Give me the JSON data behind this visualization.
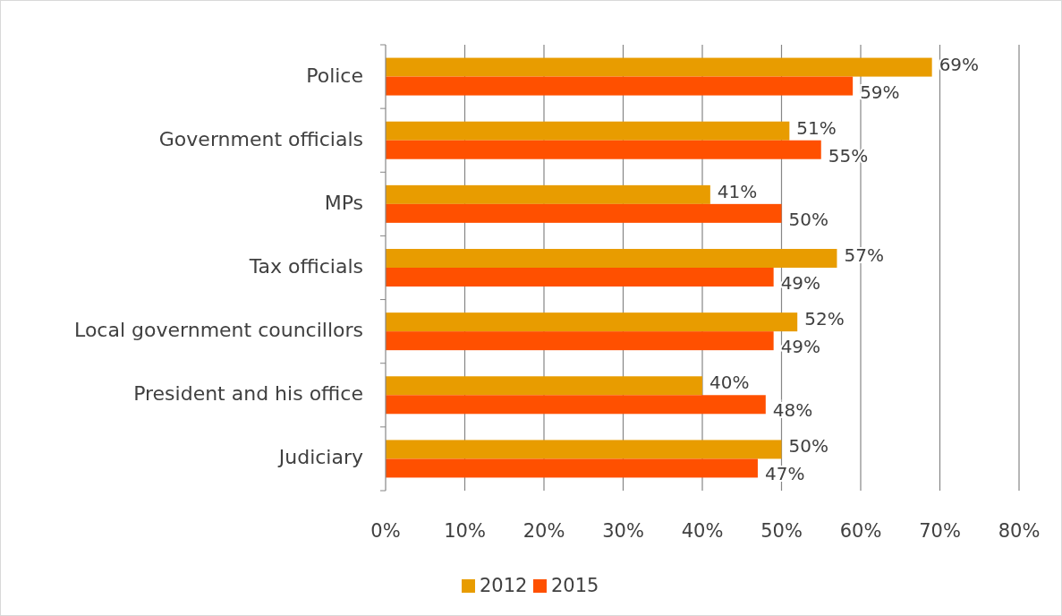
{
  "chart_data": {
    "type": "bar",
    "orientation": "horizontal",
    "categories": [
      "Police",
      "Government officials",
      "MPs",
      "Tax officials",
      "Local government councillors",
      "President and his office",
      "Judiciary"
    ],
    "series": [
      {
        "name": "2012",
        "color": "#e89c00",
        "values": [
          69,
          51,
          41,
          57,
          52,
          40,
          50
        ],
        "value_labels": [
          "69%",
          "51%",
          "41%",
          "57%",
          "52%",
          "40%",
          "50%"
        ]
      },
      {
        "name": "2015",
        "color": "#ff5000",
        "values": [
          59,
          55,
          50,
          49,
          49,
          48,
          47
        ],
        "value_labels": [
          "59%",
          "55%",
          "50%",
          "49%",
          "49%",
          "48%",
          "47%"
        ]
      }
    ],
    "xlim": [
      0,
      80
    ],
    "xticks": [
      {
        "value": 0,
        "label": "0%"
      },
      {
        "value": 10,
        "label": "10%"
      },
      {
        "value": 20,
        "label": "20%"
      },
      {
        "value": 30,
        "label": "30%"
      },
      {
        "value": 40,
        "label": "40%"
      },
      {
        "value": 50,
        "label": "50%"
      },
      {
        "value": 60,
        "label": "60%"
      },
      {
        "value": 70,
        "label": "70%"
      },
      {
        "value": 80,
        "label": "80%"
      }
    ],
    "grid": "x",
    "legend": "bottom"
  }
}
